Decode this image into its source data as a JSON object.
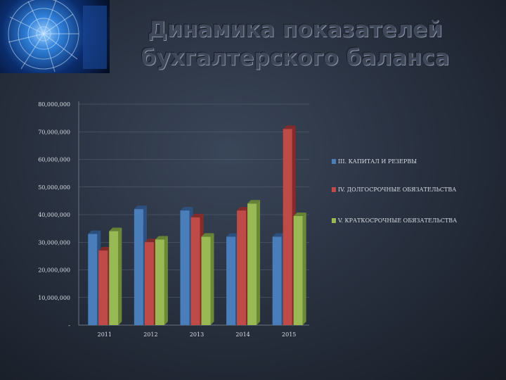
{
  "page": {
    "title_line1": "Динамика показателей",
    "title_line2": "бухгалтерского баланса",
    "photo_icon": "turbine-engine-photo"
  },
  "colors": {
    "series": [
      "#4a7ebb",
      "#be4b48",
      "#98b954"
    ],
    "series_dark": [
      "#2c5283",
      "#8a2a28",
      "#6b8a33"
    ],
    "axis": "#6b7280",
    "tick_text": "#d9dde4"
  },
  "chart_data": {
    "type": "bar",
    "title": "",
    "xlabel": "",
    "ylabel": "",
    "categories": [
      "2011",
      "2012",
      "2013",
      "2014",
      "2015"
    ],
    "ylim": [
      0,
      80000000
    ],
    "yticks": [
      0,
      10000000,
      20000000,
      30000000,
      40000000,
      50000000,
      60000000,
      70000000,
      80000000
    ],
    "ytick_labels": [
      "-",
      "10,000,000",
      "20,000,000",
      "30,000,000",
      "40,000,000",
      "50,000,000",
      "60,000,000",
      "70,000,000",
      "80,000,000"
    ],
    "grid": true,
    "legend_position": "right",
    "series": [
      {
        "name": "III. КАПИТАЛ И РЕЗЕРВЫ",
        "values": [
          33000000,
          42000000,
          41500000,
          32000000,
          32000000
        ]
      },
      {
        "name": "IV. ДОЛГОСРОЧНЫЕ ОБЯЗАТЕЛЬСТВА",
        "values": [
          27000000,
          30000000,
          39000000,
          41500000,
          71000000
        ]
      },
      {
        "name": "V. КРАТКОСРОЧНЫЕ ОБЯЗАТЕЛЬСТВА",
        "values": [
          34000000,
          31000000,
          32000000,
          44000000,
          39500000
        ]
      }
    ]
  }
}
